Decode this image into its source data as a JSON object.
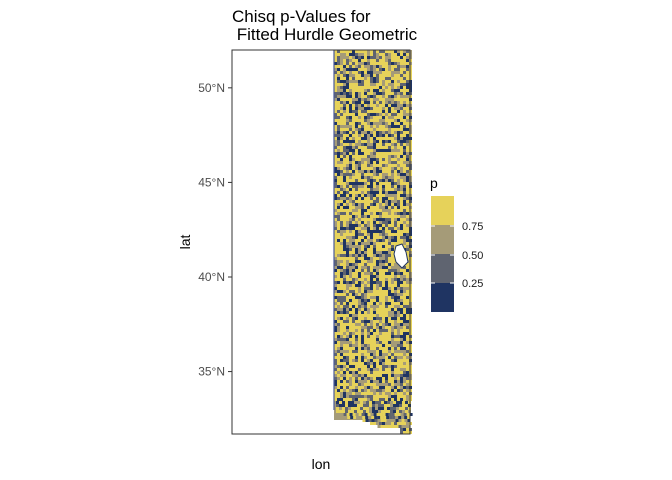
{
  "chart_data": {
    "type": "heatmap",
    "title_line1": "Chisq p-Values for",
    "title_line2": " Fitted Hurdle Geometric",
    "xlabel": "lon",
    "ylabel": "lat",
    "y_ticks": [
      "50°N",
      "45°N",
      "40°N",
      "35°N"
    ],
    "y_tick_values": [
      50,
      45,
      40,
      35
    ],
    "ylim": [
      31.7,
      52.0
    ],
    "legend": {
      "title": "p",
      "labels": [
        "0.75",
        "0.50",
        "0.25"
      ],
      "label_values": [
        0.75,
        0.5,
        0.25
      ],
      "colors": [
        "#e6d25a",
        "#a59b78",
        "#5f6470",
        "#1f3462"
      ]
    },
    "palette": {
      "low": "#1f3462",
      "mid_low": "#5f6470",
      "mid_high": "#a59b78",
      "high": "#e6d25a",
      "water": "#ffffff",
      "border": "#4a5a9a"
    },
    "grid": false,
    "legend_position": "right"
  }
}
